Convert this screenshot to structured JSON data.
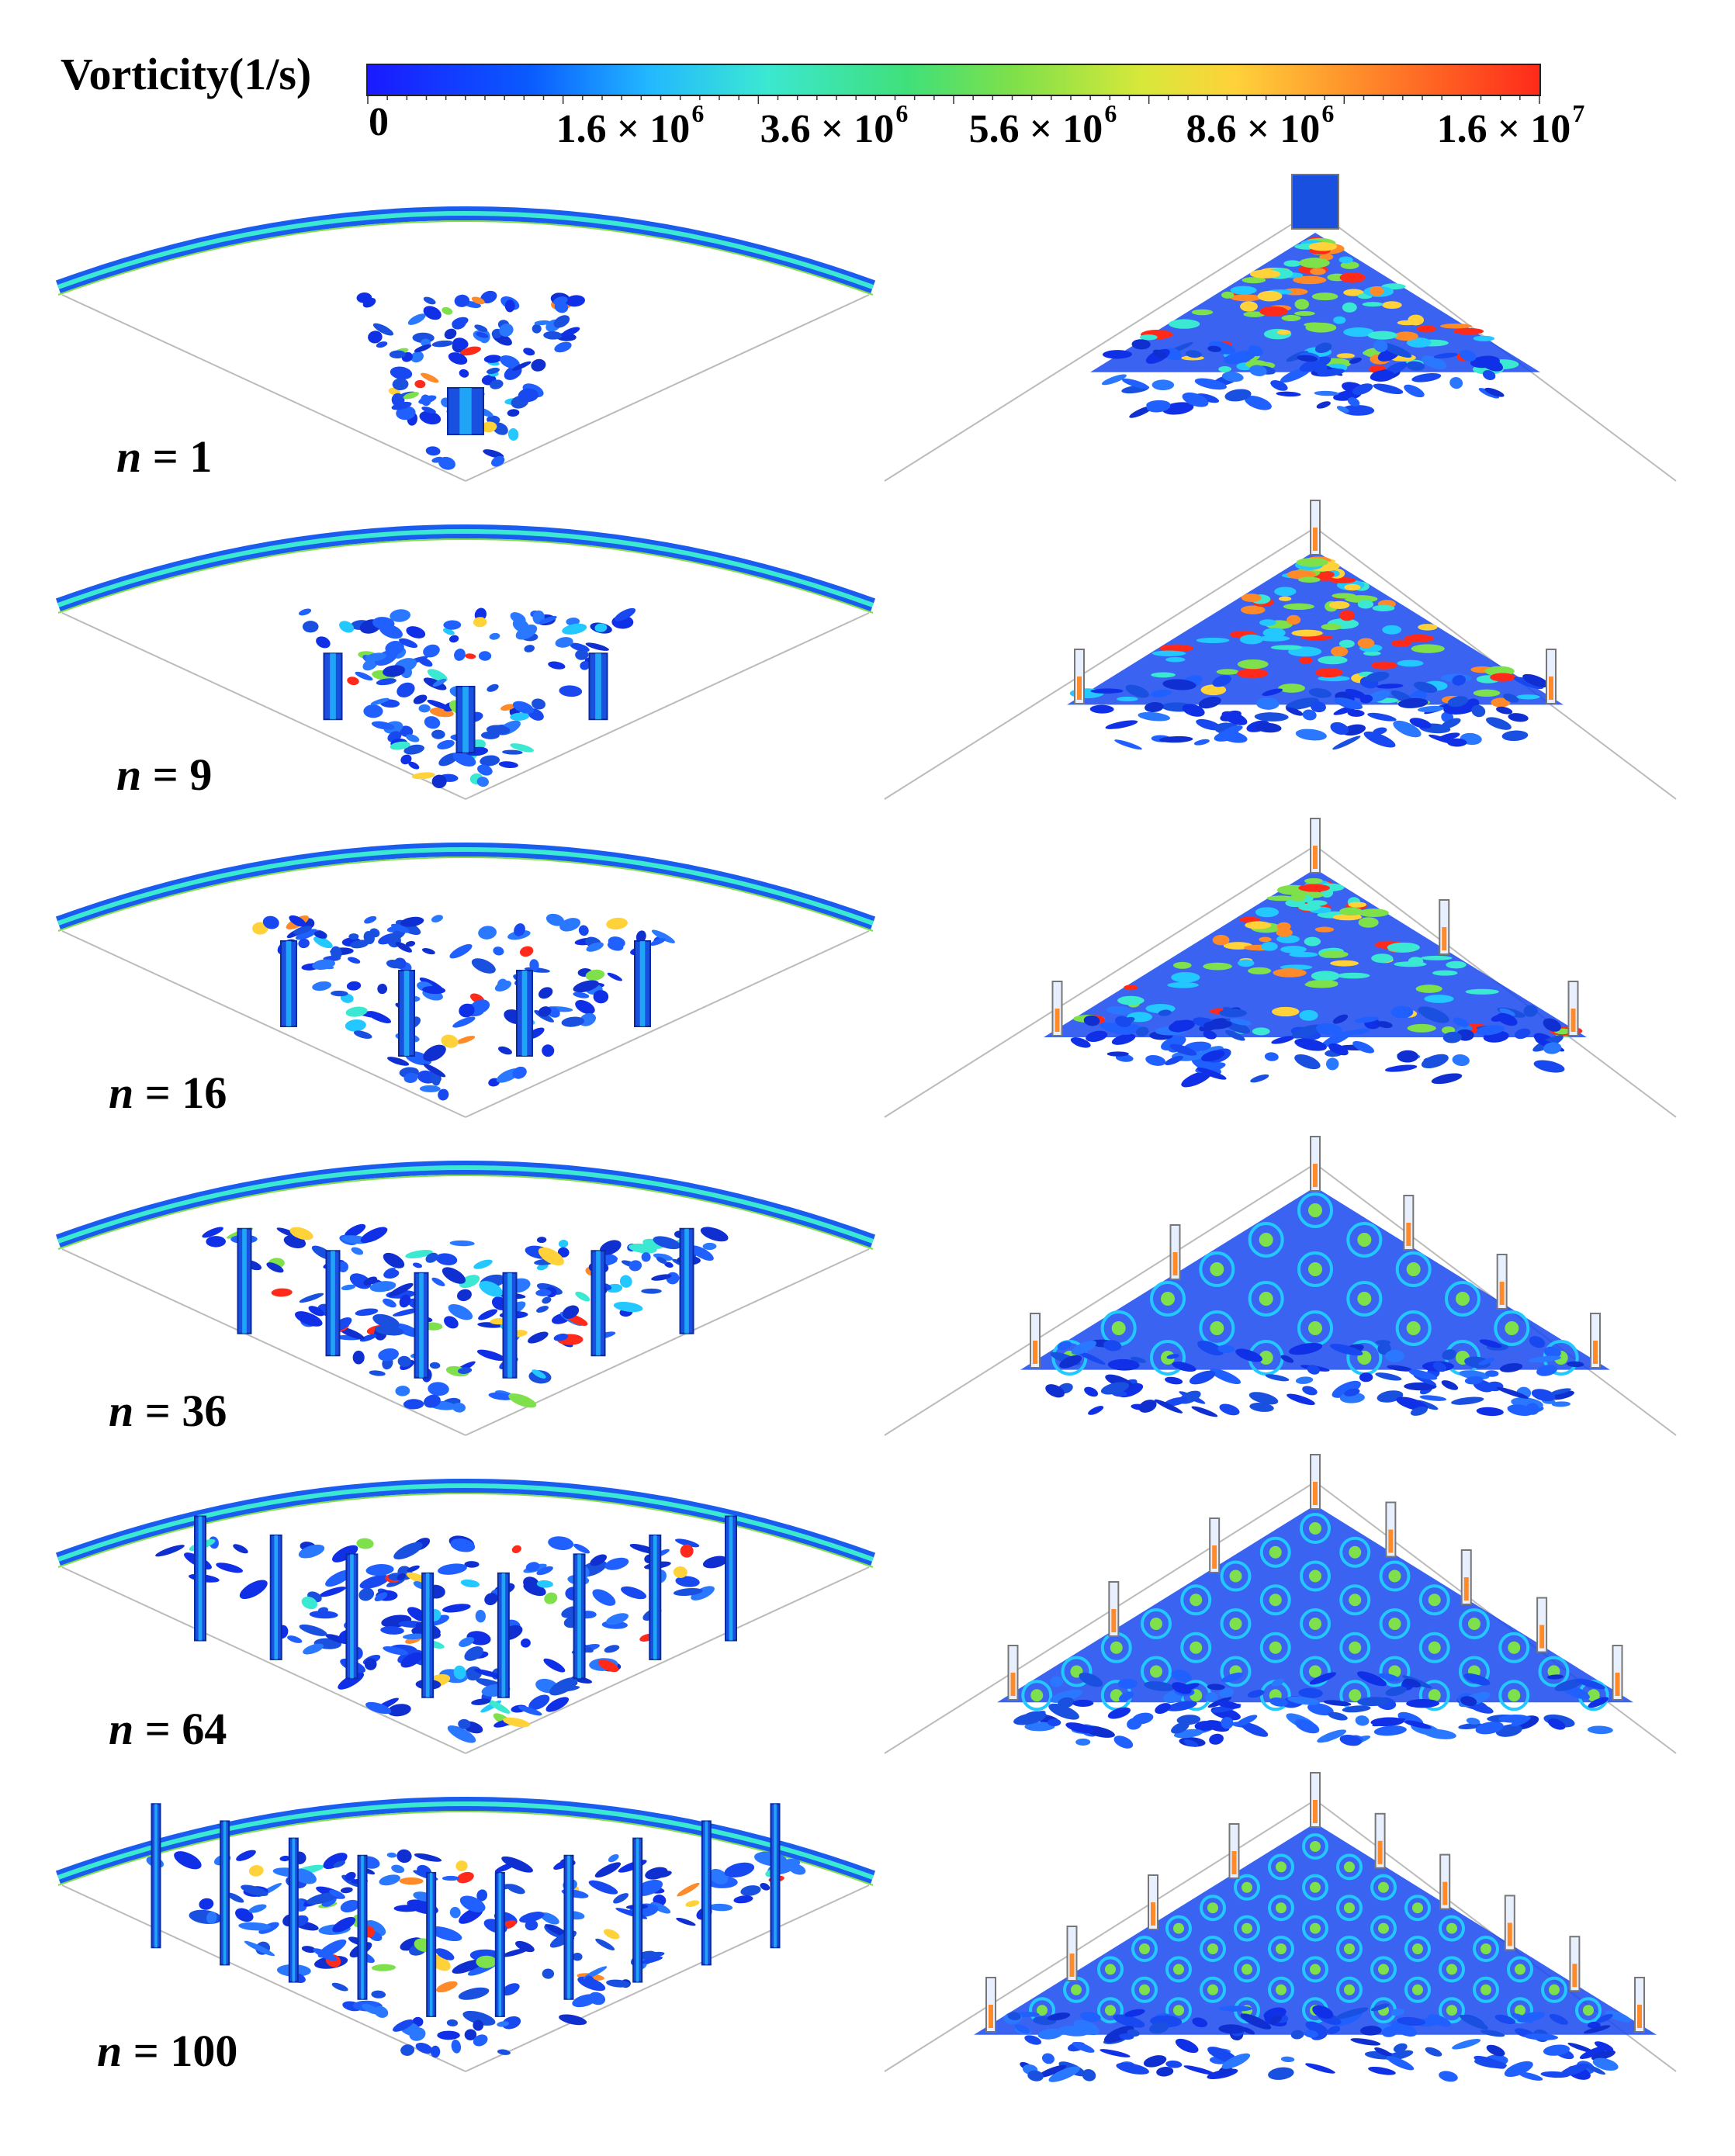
{
  "colorbar": {
    "title": "Vorticity(1/s)",
    "ticks": [
      {
        "base": "0",
        "exp": ""
      },
      {
        "base": "1.6 × 10",
        "exp": "6"
      },
      {
        "base": "3.6 × 10",
        "exp": "6"
      },
      {
        "base": "5.6 × 10",
        "exp": "6"
      },
      {
        "base": "8.6 × 10",
        "exp": "6"
      },
      {
        "base": "1.6 × 10",
        "exp": "7"
      }
    ],
    "colors": [
      "#1a1aff",
      "#22b8ff",
      "#3be8d2",
      "#7ee04a",
      "#ffd23a",
      "#ff2a1a"
    ]
  },
  "panels": [
    {
      "label_var": "n",
      "label_eq": " = 1",
      "count": 1,
      "left_pillars": 1,
      "right_pillars": 1
    },
    {
      "label_var": "n",
      "label_eq": " = 9",
      "count": 9,
      "left_pillars": 3,
      "right_pillars": 3
    },
    {
      "label_var": "n",
      "label_eq": " = 16",
      "count": 16,
      "left_pillars": 4,
      "right_pillars": 4
    },
    {
      "label_var": "n",
      "label_eq": " = 36",
      "count": 36,
      "left_pillars": 6,
      "right_pillars": 6
    },
    {
      "label_var": "n",
      "label_eq": " = 64",
      "count": 64,
      "left_pillars": 8,
      "right_pillars": 8
    },
    {
      "label_var": "n",
      "label_eq": " = 100",
      "count": 100,
      "left_pillars": 10,
      "right_pillars": 10
    }
  ]
}
